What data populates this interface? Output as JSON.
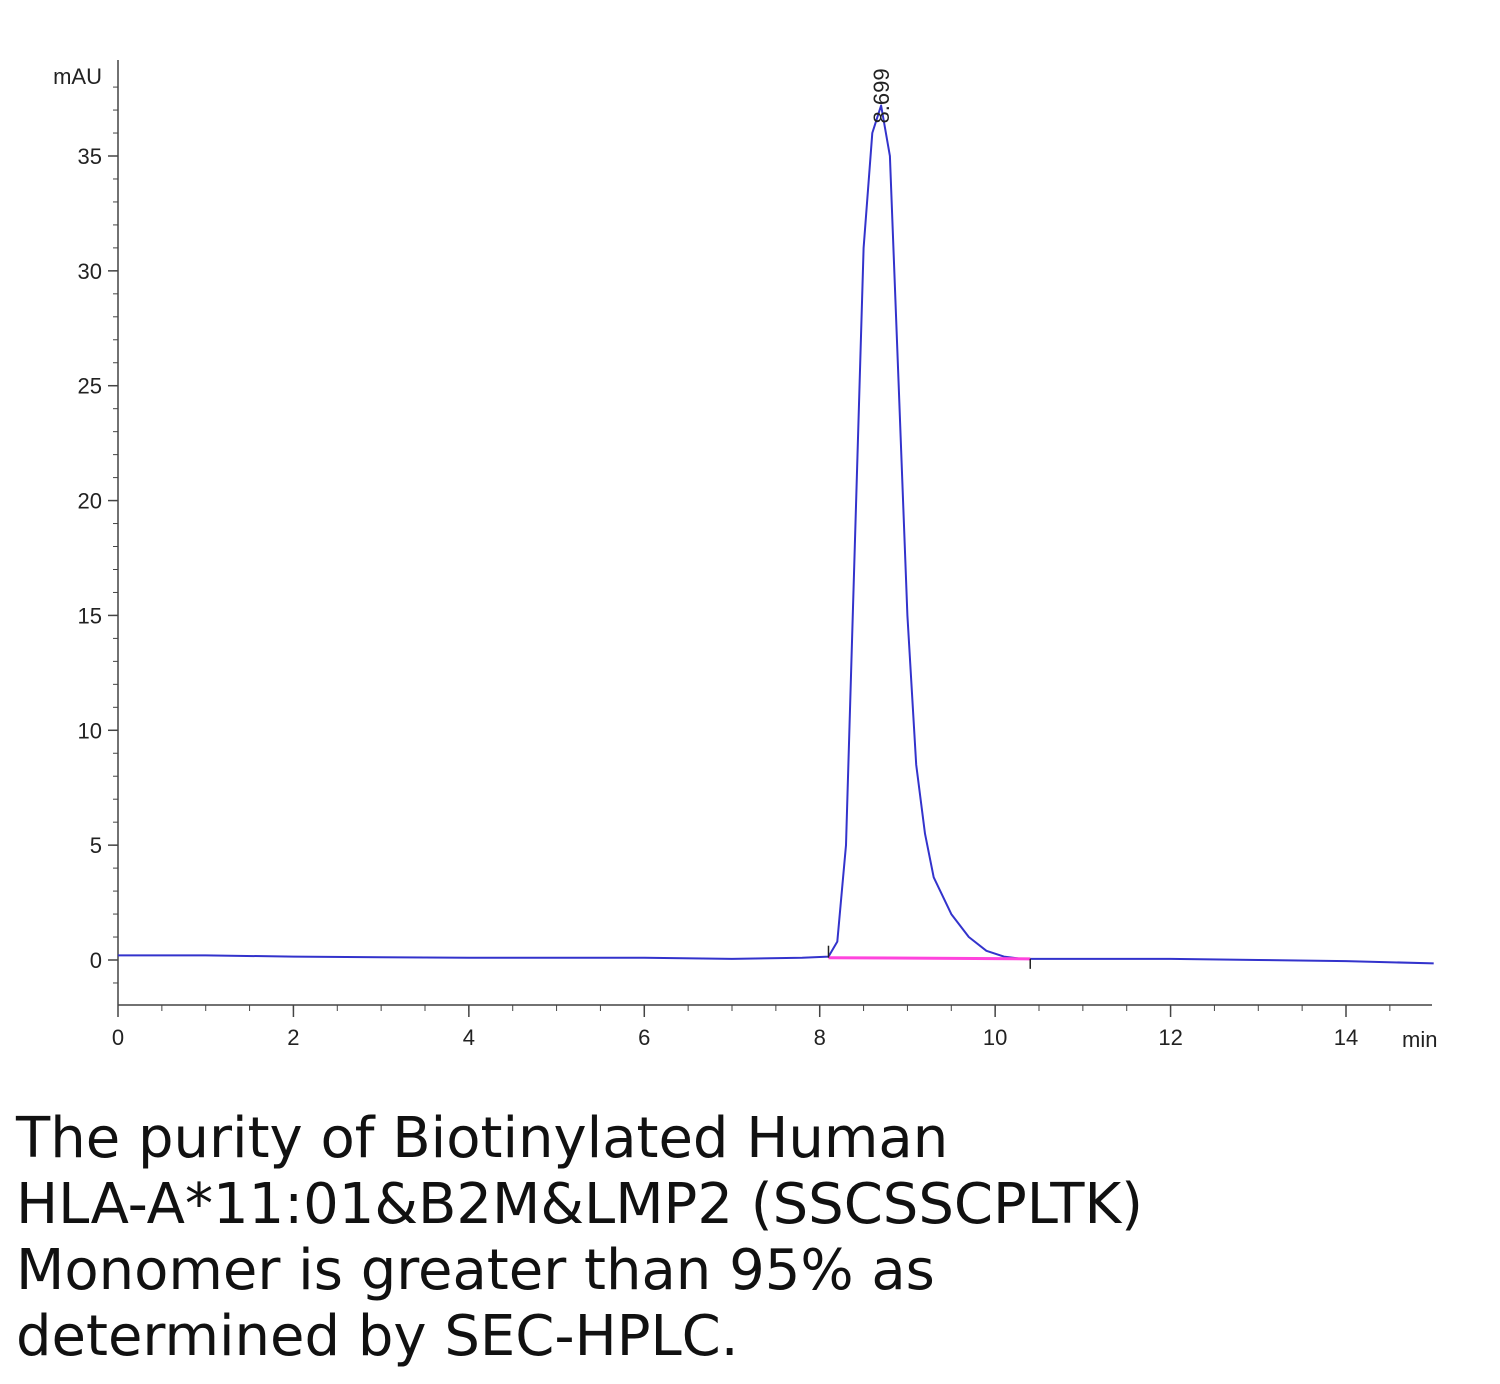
{
  "chart_data": {
    "type": "line",
    "title": "",
    "xlabel": "min",
    "ylabel": "mAU",
    "xlim": [
      0,
      15
    ],
    "ylim": [
      -2,
      38
    ],
    "x_ticks": [
      0,
      2,
      4,
      6,
      8,
      10,
      12,
      14
    ],
    "y_ticks": [
      0,
      5,
      10,
      15,
      20,
      25,
      30,
      35
    ],
    "grid": false,
    "legend": "none",
    "series": [
      {
        "color": "#3333cc",
        "x": [
          0,
          1,
          2,
          3,
          4,
          5,
          6,
          7,
          7.8,
          8.1,
          8.2,
          8.3,
          8.4,
          8.5,
          8.6,
          8.7,
          8.8,
          8.9,
          9.0,
          9.1,
          9.2,
          9.3,
          9.5,
          9.7,
          9.9,
          10.1,
          10.3,
          11,
          12,
          13,
          14,
          15
        ],
        "y": [
          0.2,
          0.2,
          0.15,
          0.12,
          0.1,
          0.1,
          0.1,
          0.05,
          0.1,
          0.15,
          0.8,
          5,
          18,
          31,
          36,
          37.2,
          35,
          25,
          15,
          8.5,
          5.5,
          3.6,
          2.0,
          1.0,
          0.4,
          0.15,
          0.05,
          0.05,
          0.05,
          0.0,
          -0.05,
          -0.15
        ]
      }
    ],
    "baseline": {
      "color": "#ff44dd",
      "x": [
        8.1,
        10.4
      ],
      "y": [
        0.1,
        0.05
      ]
    },
    "annotations": [
      {
        "x": 8.699,
        "y": 37.2,
        "text": "8.699"
      }
    ]
  },
  "caption": {
    "lines": [
      "The purity of Biotinylated Human",
      "HLA-A*11:01&B2M&LMP2 (SSCSSCPLTK)",
      "Monomer is greater than 95% as",
      "determined by SEC-HPLC."
    ]
  }
}
